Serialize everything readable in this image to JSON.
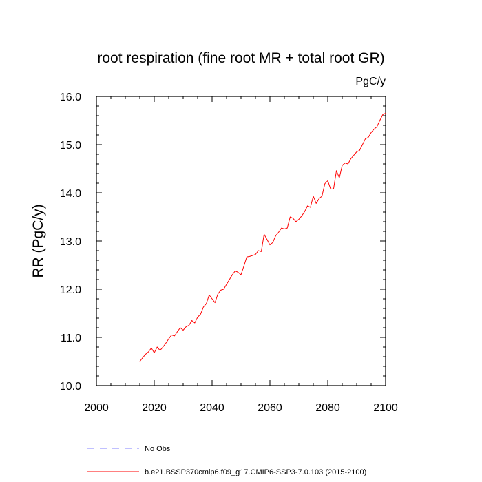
{
  "chart_data": {
    "type": "line",
    "title": "root respiration (fine root MR + total root GR)",
    "units": "PgC/y",
    "xlabel": "",
    "ylabel": "RR  (PgC/y)",
    "xlim": [
      2000,
      2100
    ],
    "ylim": [
      10.0,
      16.0
    ],
    "x_ticks": [
      "2000",
      "2020",
      "2040",
      "2060",
      "2080",
      "2100"
    ],
    "y_ticks": [
      "10.0",
      "11.0",
      "12.0",
      "13.0",
      "14.0",
      "15.0",
      "16.0"
    ],
    "grid": false,
    "legend_position": "bottom",
    "series": [
      {
        "name": "No Obs",
        "color": "#8080ff",
        "style": "dashed",
        "x": [],
        "y": []
      },
      {
        "name": "b.e21.BSSP370cmip6.f09_g17.CMIP6-SSP3-7.0.103 (2015-2100)",
        "color": "#ff0000",
        "style": "solid",
        "x": [
          2015,
          2016,
          2017,
          2018,
          2019,
          2020,
          2021,
          2022,
          2023,
          2024,
          2025,
          2026,
          2027,
          2028,
          2029,
          2030,
          2031,
          2032,
          2033,
          2034,
          2035,
          2036,
          2037,
          2038,
          2039,
          2040,
          2041,
          2042,
          2043,
          2044,
          2045,
          2046,
          2047,
          2048,
          2049,
          2050,
          2051,
          2052,
          2053,
          2054,
          2055,
          2056,
          2057,
          2058,
          2059,
          2060,
          2061,
          2062,
          2063,
          2064,
          2065,
          2066,
          2067,
          2068,
          2069,
          2070,
          2071,
          2072,
          2073,
          2074,
          2075,
          2076,
          2077,
          2078,
          2079,
          2080,
          2081,
          2082,
          2083,
          2084,
          2085,
          2086,
          2087,
          2088,
          2089,
          2090,
          2091,
          2092,
          2093,
          2094,
          2095,
          2096,
          2097,
          2098,
          2099,
          2100
        ],
        "y": [
          10.5,
          10.58,
          10.65,
          10.7,
          10.78,
          10.68,
          10.8,
          10.73,
          10.8,
          10.88,
          10.97,
          11.05,
          11.03,
          11.12,
          11.2,
          11.15,
          11.22,
          11.25,
          11.35,
          11.3,
          11.42,
          11.48,
          11.63,
          11.7,
          11.88,
          11.8,
          11.72,
          11.9,
          11.98,
          12.0,
          12.1,
          12.2,
          12.3,
          12.38,
          12.35,
          12.3,
          12.48,
          12.67,
          12.68,
          12.7,
          12.72,
          12.8,
          12.78,
          13.14,
          13.03,
          12.92,
          12.97,
          13.11,
          13.18,
          13.27,
          13.25,
          13.27,
          13.5,
          13.47,
          13.4,
          13.45,
          13.52,
          13.61,
          13.73,
          13.7,
          13.93,
          13.78,
          13.88,
          13.93,
          14.19,
          14.25,
          14.08,
          14.08,
          14.46,
          14.31,
          14.57,
          14.62,
          14.6,
          14.71,
          14.78,
          14.85,
          14.88,
          15.0,
          15.12,
          15.15,
          15.25,
          15.32,
          15.37,
          15.5,
          15.62,
          15.65
        ]
      }
    ]
  }
}
